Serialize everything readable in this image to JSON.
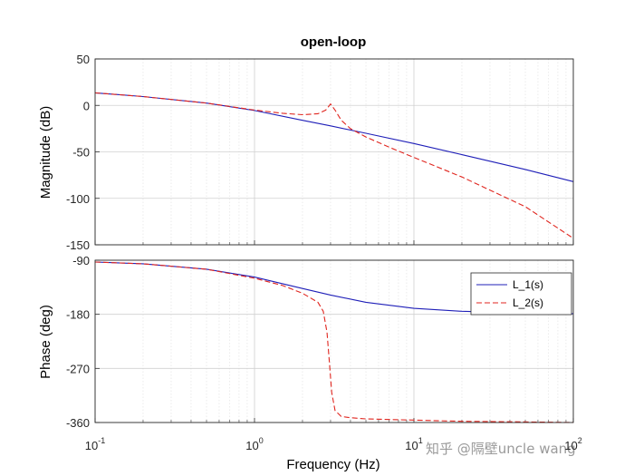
{
  "chart_data": {
    "type": "line",
    "title": "open-loop",
    "xlabel": "Frequency  (Hz)",
    "x_scale": "log",
    "xlim": [
      0.1,
      100
    ],
    "x_ticks": [
      {
        "value": 0.1,
        "base": "10",
        "exp": "-1"
      },
      {
        "value": 1,
        "base": "10",
        "exp": "0"
      },
      {
        "value": 10,
        "base": "10",
        "exp": "1"
      },
      {
        "value": 100,
        "base": "10",
        "exp": "2"
      }
    ],
    "grid": true,
    "colors": {
      "L_1": "#1f1fb8",
      "L_2": "#e0261f"
    },
    "subplots": [
      {
        "name": "magnitude",
        "ylabel": "Magnitude (dB)",
        "ylim": [
          -150,
          50
        ],
        "y_ticks": [
          "50",
          "0",
          "-50",
          "-100",
          "-150"
        ],
        "y_tick_values": [
          50,
          0,
          -50,
          -100,
          -150
        ],
        "series": [
          {
            "key": "L_1",
            "style": "solid",
            "x": [
              0.1,
              0.2,
              0.5,
              1,
              2,
              3,
              5,
              10,
              20,
              50,
              100
            ],
            "y": [
              13.5,
              9.5,
              2.5,
              -5.5,
              -16,
              -22,
              -30,
              -41,
              -53,
              -69,
              -82
            ]
          },
          {
            "key": "L_2",
            "style": "dashed",
            "x": [
              0.1,
              0.2,
              0.5,
              1,
              1.5,
              2,
              2.5,
              2.8,
              3.0,
              3.2,
              3.5,
              4,
              5,
              7,
              10,
              20,
              50,
              100
            ],
            "y": [
              13.5,
              9.5,
              2.5,
              -5,
              -8.5,
              -10,
              -9,
              -5,
              1.5,
              -5,
              -16,
              -25,
              -34,
              -45,
              -56,
              -77,
              -109,
              -143
            ]
          }
        ]
      },
      {
        "name": "phase",
        "ylabel": "Phase (deg)",
        "ylim": [
          -360,
          -90
        ],
        "y_ticks": [
          "-90",
          "-180",
          "-270",
          "-360"
        ],
        "y_tick_values": [
          -90,
          -180,
          -270,
          -360
        ],
        "legend": {
          "position": "top-right",
          "entries": [
            "L_1(s)",
            "L_2(s)"
          ]
        },
        "series": [
          {
            "key": "L_1",
            "style": "solid",
            "x": [
              0.1,
              0.2,
              0.5,
              1,
              2,
              3,
              5,
              10,
              20,
              50,
              100
            ],
            "y": [
              -93,
              -96,
              -105,
              -118,
              -137,
              -148,
              -160,
              -170,
              -175,
              -178,
              -179
            ]
          },
          {
            "key": "L_2",
            "style": "dashed",
            "x": [
              0.1,
              0.2,
              0.5,
              1,
              1.5,
              2,
              2.5,
              2.7,
              2.85,
              2.95,
              3.05,
              3.2,
              3.5,
              4,
              5,
              10,
              20,
              50,
              100
            ],
            "y": [
              -93,
              -96,
              -105,
              -120,
              -132,
              -145,
              -160,
              -175,
              -210,
              -260,
              -310,
              -340,
              -350,
              -352,
              -354,
              -356,
              -358,
              -359,
              -360
            ]
          }
        ]
      }
    ]
  },
  "watermark": "知乎 @隔壁uncle wang"
}
